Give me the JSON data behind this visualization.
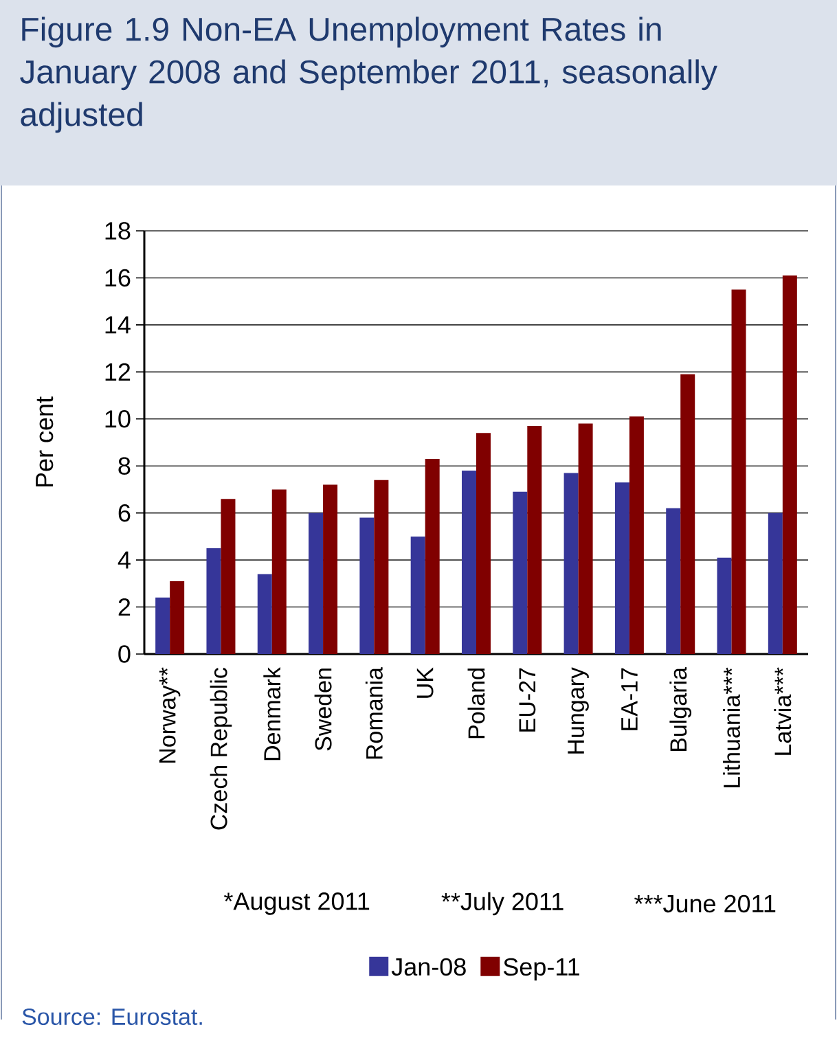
{
  "chart_data": {
    "type": "bar",
    "title": "Figure 1.9 Non-EA Unemployment Rates in January 2008 and September 2011, seasonally adjusted",
    "ylabel": "Per cent",
    "categories": [
      "Norway**",
      "Czech Republic",
      "Denmark",
      "Sweden",
      "Romania",
      "UK",
      "Poland",
      "EU-27",
      "Hungary",
      "EA-17",
      "Bulgaria",
      "Lithuania***",
      "Latvia***"
    ],
    "series": [
      {
        "name": "Jan-08",
        "color": "#363699",
        "values": [
          2.4,
          4.5,
          3.4,
          6.0,
          5.8,
          5.0,
          7.8,
          6.9,
          7.7,
          7.3,
          6.2,
          4.1,
          6.0
        ]
      },
      {
        "name": "Sep-11",
        "color": "#800000",
        "values": [
          3.1,
          6.6,
          7.0,
          7.2,
          7.4,
          8.3,
          9.4,
          9.7,
          9.8,
          10.1,
          11.9,
          15.5,
          16.1
        ]
      }
    ],
    "ylim": [
      0,
      18
    ],
    "yticks": [
      0,
      2,
      4,
      6,
      8,
      10,
      12,
      14,
      16,
      18
    ],
    "grid": "y",
    "legend": "bottom",
    "annotations": [
      "*August 2011",
      "**July 2011",
      "***June 2011",
      "Source: Eurostat."
    ]
  }
}
